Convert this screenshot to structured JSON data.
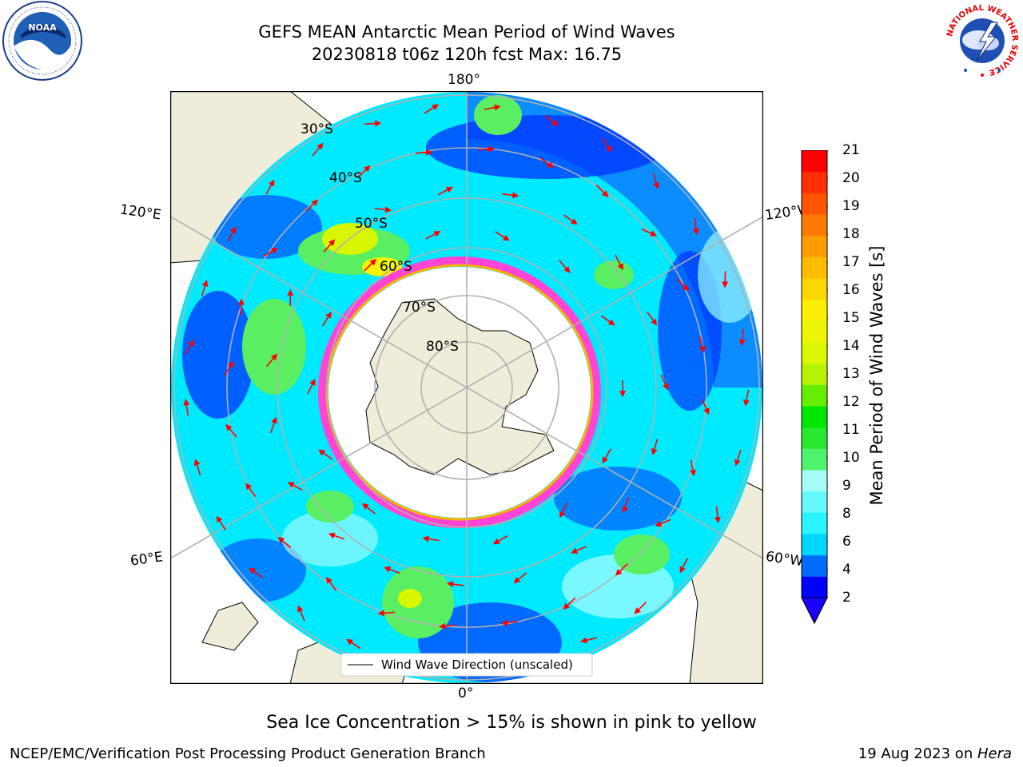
{
  "header": {
    "title_line1": "GEFS MEAN Antarctic Mean Period of Wind Waves",
    "title_line2": "20230818 t06z 120h fcst   Max: 16.75"
  },
  "logos": {
    "left": {
      "name": "noaa-logo",
      "text": "NOAA"
    },
    "right": {
      "name": "nws-logo",
      "text": "NATIONAL WEATHER SERVICE"
    }
  },
  "map": {
    "longitude_labels": {
      "top": "180°",
      "bottom": "0°",
      "upper_left": "120°E",
      "upper_right": "120°W",
      "lower_left": "60°E",
      "lower_right": "60°W"
    },
    "latitude_labels": [
      "30°S",
      "40°S",
      "50°S",
      "60°S",
      "70°S",
      "80°S"
    ],
    "legend": "Wind Wave Direction (unscaled)",
    "colors": {
      "land": "#efedd9",
      "ocean_light": "#00eaff",
      "ocean_deep": "#0032ff",
      "ocean_pale": "#99fbff",
      "green": "#5aef62",
      "yellow": "#f5f500",
      "ice_edge": "#ff44d6",
      "arrow": "#ff0000"
    }
  },
  "colorbar": {
    "label": "Mean Period of Wind Waves [s]",
    "ticks": [
      "21",
      "20",
      "19",
      "18",
      "17",
      "16",
      "15",
      "14",
      "13",
      "12",
      "11",
      "10",
      "9",
      "8",
      "6",
      "4",
      "2"
    ],
    "colors": [
      "#0000ff",
      "#006bff",
      "#00d7ff",
      "#29f4ff",
      "#63f9ff",
      "#a3fdf6",
      "#4df36c",
      "#27ea30",
      "#00e600",
      "#66ee00",
      "#b5f400",
      "#daf700",
      "#eef700",
      "#fbf000",
      "#ffd700",
      "#ffbc00",
      "#ff9b00",
      "#ff7800",
      "#ff5500",
      "#ff3000",
      "#ff0000"
    ]
  },
  "caption": "Sea Ice Concentration > 15% is shown in pink to yellow",
  "footer": {
    "left": "NCEP/EMC/Verification Post Processing Product Generation Branch",
    "right_date": "19 Aug 2023 on ",
    "right_machine": "Hera"
  }
}
